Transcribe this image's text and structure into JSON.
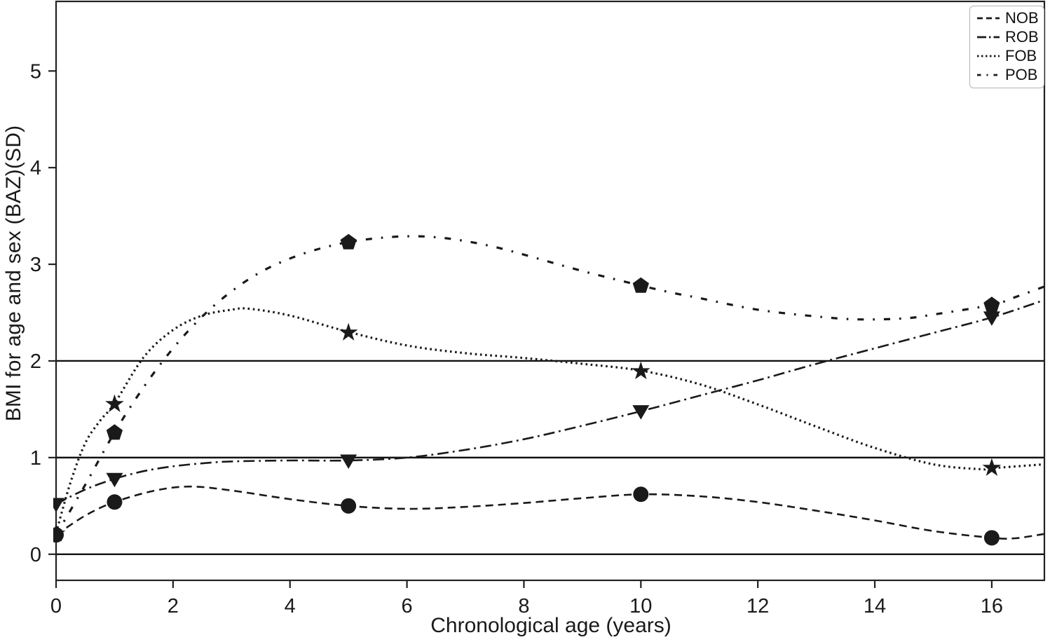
{
  "figure": {
    "background": "#ffffff",
    "line_color": "#1a1a1a",
    "axis_color": "#222222",
    "reference_line_color": "#111111",
    "legend_border_color": "#b3b3b3"
  },
  "chart_data": {
    "type": "line",
    "title": "",
    "xlabel": "Chronological age (years)",
    "ylabel": "BMI for age and sex (BAZ)(SD)",
    "xlim": [
      0,
      16.9
    ],
    "ylim": [
      -0.27,
      5.72
    ],
    "x_ticks": [
      0,
      2,
      4,
      6,
      8,
      10,
      12,
      14,
      16
    ],
    "y_ticks": [
      0,
      1,
      2,
      3,
      4,
      5
    ],
    "grid": false,
    "reference_lines_y": [
      0,
      1,
      2
    ],
    "legend_position": "top-right",
    "series": [
      {
        "name": "NOB",
        "line_style": "dashed",
        "marker": "circle",
        "color": "#1a1a1a",
        "x": [
          0,
          1,
          5,
          10,
          16
        ],
        "y": [
          0.2,
          0.54,
          0.5,
          0.62,
          0.17
        ],
        "curve": [
          [
            0,
            0.2
          ],
          [
            0.5,
            0.4
          ],
          [
            1,
            0.54
          ],
          [
            1.7,
            0.66
          ],
          [
            2.3,
            0.7
          ],
          [
            3,
            0.66
          ],
          [
            4,
            0.57
          ],
          [
            5,
            0.5
          ],
          [
            6,
            0.47
          ],
          [
            7,
            0.49
          ],
          [
            8,
            0.53
          ],
          [
            9,
            0.58
          ],
          [
            10,
            0.62
          ],
          [
            11,
            0.6
          ],
          [
            12,
            0.54
          ],
          [
            13,
            0.45
          ],
          [
            14,
            0.35
          ],
          [
            15,
            0.24
          ],
          [
            16,
            0.17
          ],
          [
            16.4,
            0.165
          ],
          [
            16.9,
            0.21
          ]
        ]
      },
      {
        "name": "ROB",
        "line_style": "dashdot",
        "marker": "triangle-down",
        "color": "#1a1a1a",
        "x": [
          0,
          1,
          5,
          10,
          16
        ],
        "y": [
          0.52,
          0.78,
          0.97,
          1.48,
          2.45
        ],
        "curve": [
          [
            0,
            0.52
          ],
          [
            0.5,
            0.67
          ],
          [
            1,
            0.78
          ],
          [
            1.5,
            0.86
          ],
          [
            2,
            0.91
          ],
          [
            2.5,
            0.94
          ],
          [
            3,
            0.96
          ],
          [
            4,
            0.97
          ],
          [
            5,
            0.97
          ],
          [
            6,
            1.0
          ],
          [
            7,
            1.08
          ],
          [
            8,
            1.19
          ],
          [
            9,
            1.33
          ],
          [
            10,
            1.48
          ],
          [
            11,
            1.64
          ],
          [
            12,
            1.8
          ],
          [
            13,
            1.97
          ],
          [
            14,
            2.13
          ],
          [
            15,
            2.29
          ],
          [
            16,
            2.45
          ],
          [
            16.9,
            2.63
          ]
        ]
      },
      {
        "name": "FOB",
        "line_style": "dotted",
        "marker": "star",
        "color": "#1a1a1a",
        "x": [
          0,
          1,
          5,
          10,
          16
        ],
        "y": [
          0.22,
          1.56,
          2.3,
          1.9,
          0.9
        ],
        "curve": [
          [
            0,
            0.22
          ],
          [
            0.25,
            0.75
          ],
          [
            0.5,
            1.15
          ],
          [
            0.75,
            1.38
          ],
          [
            1,
            1.56
          ],
          [
            1.5,
            2.04
          ],
          [
            2,
            2.32
          ],
          [
            2.5,
            2.47
          ],
          [
            3,
            2.53
          ],
          [
            3.3,
            2.54
          ],
          [
            4,
            2.47
          ],
          [
            5,
            2.3
          ],
          [
            6,
            2.16
          ],
          [
            7,
            2.08
          ],
          [
            8,
            2.03
          ],
          [
            9,
            1.97
          ],
          [
            10,
            1.9
          ],
          [
            11,
            1.76
          ],
          [
            12,
            1.55
          ],
          [
            13,
            1.32
          ],
          [
            14,
            1.1
          ],
          [
            15,
            0.93
          ],
          [
            15.8,
            0.88
          ],
          [
            16,
            0.89
          ],
          [
            16.9,
            0.93
          ]
        ]
      },
      {
        "name": "POB",
        "line_style": "loosely-dashdot",
        "marker": "pentagon",
        "color": "#1a1a1a",
        "x": [
          1,
          5,
          10,
          16
        ],
        "y": [
          1.26,
          3.23,
          2.78,
          2.58
        ],
        "curve": [
          [
            0,
            0.2
          ],
          [
            0.5,
            0.72
          ],
          [
            1,
            1.26
          ],
          [
            1.5,
            1.73
          ],
          [
            2,
            2.13
          ],
          [
            2.5,
            2.46
          ],
          [
            3,
            2.72
          ],
          [
            3.5,
            2.92
          ],
          [
            4,
            3.06
          ],
          [
            4.5,
            3.16
          ],
          [
            5,
            3.23
          ],
          [
            5.5,
            3.27
          ],
          [
            6,
            3.29
          ],
          [
            6.5,
            3.28
          ],
          [
            7,
            3.24
          ],
          [
            7.5,
            3.18
          ],
          [
            8,
            3.1
          ],
          [
            9,
            2.93
          ],
          [
            10,
            2.78
          ],
          [
            10.5,
            2.71
          ],
          [
            11,
            2.65
          ],
          [
            12,
            2.53
          ],
          [
            13,
            2.46
          ],
          [
            13.7,
            2.43
          ],
          [
            14.5,
            2.44
          ],
          [
            15,
            2.48
          ],
          [
            16,
            2.58
          ],
          [
            16.4,
            2.66
          ],
          [
            16.9,
            2.77
          ]
        ]
      }
    ]
  }
}
